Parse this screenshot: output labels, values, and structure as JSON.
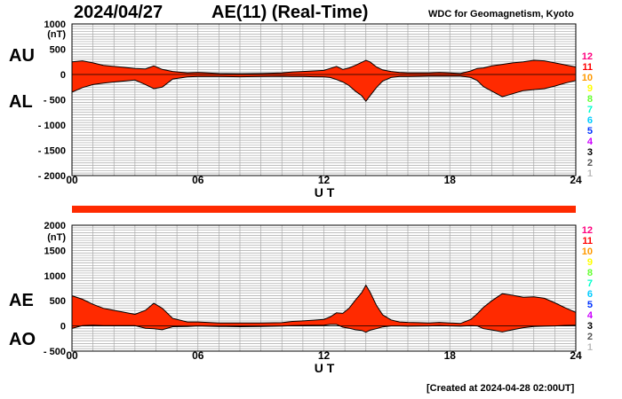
{
  "header": {
    "date": "2024/04/27",
    "index_title": "AE(11) (Real-Time)",
    "source": "WDC for Geomagnetism, Kyoto"
  },
  "footer": {
    "created": "[Created at 2024-04-28 02:00UT]"
  },
  "labels": {
    "au": "AU",
    "al": "AL",
    "ae": "AE",
    "ao": "AO"
  },
  "colors": {
    "fill": "#ff2a00",
    "grid": "#a8a8a8",
    "station_bar": "#ff2a00",
    "legend": [
      "#ff007f",
      "#ff0000",
      "#ff9900",
      "#ffff00",
      "#66ff33",
      "#00ffcc",
      "#00ccff",
      "#0033ff",
      "#cc00ff",
      "#000000",
      "#555555",
      "#bbbbbb"
    ]
  },
  "legend_numbers": [
    "12",
    "11",
    "10",
    "9",
    "8",
    "7",
    "6",
    "5",
    "4",
    "3",
    "2",
    "1"
  ],
  "chart_data": [
    {
      "type": "area",
      "name": "AU/AL",
      "xlabel": "U T",
      "ylabel": "(nT)",
      "xlim": [
        0,
        24
      ],
      "ylim": [
        -2000,
        1000
      ],
      "xticks": [
        "00",
        "06",
        "12",
        "18",
        "24"
      ],
      "yticks": [
        "1000",
        "500",
        "0",
        "- 500",
        "- 1000",
        "- 1500",
        "- 2000"
      ],
      "grid": true,
      "x": [
        0,
        0.5,
        1,
        1.5,
        2,
        2.5,
        3,
        3.5,
        3.9,
        4.3,
        4.8,
        5.5,
        6,
        7,
        8,
        9,
        10,
        10.5,
        11,
        11.5,
        12,
        12.3,
        12.6,
        12.9,
        13.2,
        13.5,
        13.8,
        14,
        14.2,
        14.5,
        14.8,
        15.2,
        15.6,
        16,
        16.5,
        17,
        17.5,
        18,
        18.5,
        19,
        19.3,
        19.6,
        20,
        20.5,
        21,
        21.5,
        22,
        22.5,
        23,
        23.5,
        24
      ],
      "series": [
        {
          "name": "AU",
          "values": [
            250,
            270,
            230,
            180,
            160,
            140,
            120,
            110,
            170,
            100,
            60,
            30,
            40,
            20,
            15,
            20,
            30,
            50,
            60,
            70,
            80,
            120,
            160,
            100,
            130,
            180,
            240,
            280,
            250,
            150,
            90,
            60,
            40,
            30,
            30,
            30,
            40,
            30,
            20,
            70,
            120,
            130,
            170,
            200,
            230,
            250,
            280,
            270,
            230,
            190,
            150
          ]
        },
        {
          "name": "AL",
          "values": [
            -350,
            -260,
            -200,
            -170,
            -150,
            -130,
            -110,
            -200,
            -280,
            -250,
            -90,
            -50,
            -40,
            -40,
            -45,
            -40,
            -35,
            -40,
            -40,
            -45,
            -50,
            -60,
            -100,
            -150,
            -220,
            -330,
            -420,
            -530,
            -420,
            -260,
            -130,
            -60,
            -40,
            -40,
            -35,
            -30,
            -30,
            -30,
            -30,
            -60,
            -120,
            -240,
            -330,
            -440,
            -380,
            -320,
            -300,
            -280,
            -230,
            -170,
            -120
          ]
        }
      ]
    },
    {
      "type": "area",
      "name": "AE/AO",
      "xlabel": "U T",
      "ylabel": "(nT)",
      "xlim": [
        0,
        24
      ],
      "ylim": [
        -500,
        2000
      ],
      "xticks": [
        "00",
        "06",
        "12",
        "18",
        "24"
      ],
      "yticks": [
        "2000",
        "1500",
        "1000",
        "500",
        "0",
        "- 500"
      ],
      "grid": true,
      "x": [
        0,
        0.5,
        1,
        1.5,
        2,
        2.5,
        3,
        3.5,
        3.9,
        4.3,
        4.8,
        5.5,
        6,
        7,
        8,
        9,
        10,
        10.5,
        11,
        11.5,
        12,
        12.3,
        12.6,
        12.9,
        13.2,
        13.5,
        13.8,
        14,
        14.2,
        14.5,
        14.8,
        15.2,
        15.6,
        16,
        16.5,
        17,
        17.5,
        18,
        18.5,
        19,
        19.3,
        19.6,
        20,
        20.5,
        21,
        21.5,
        22,
        22.5,
        23,
        23.5,
        24
      ],
      "series": [
        {
          "name": "AE",
          "values": [
            600,
            530,
            430,
            350,
            310,
            270,
            230,
            310,
            450,
            350,
            150,
            80,
            80,
            60,
            60,
            60,
            65,
            90,
            100,
            115,
            130,
            180,
            260,
            250,
            350,
            510,
            660,
            810,
            670,
            410,
            220,
            120,
            80,
            70,
            65,
            60,
            70,
            60,
            50,
            130,
            240,
            370,
            500,
            640,
            610,
            570,
            580,
            550,
            460,
            360,
            270
          ]
        },
        {
          "name": "AO",
          "values": [
            -50,
            5,
            15,
            5,
            5,
            5,
            5,
            -45,
            -55,
            -75,
            -15,
            -10,
            0,
            -10,
            -15,
            -10,
            -3,
            5,
            10,
            13,
            15,
            30,
            30,
            -25,
            -45,
            -75,
            -90,
            -125,
            -85,
            -55,
            -20,
            0,
            0,
            -5,
            -3,
            0,
            5,
            0,
            -5,
            5,
            0,
            -55,
            -80,
            -120,
            -75,
            -35,
            -10,
            -5,
            0,
            10,
            15
          ]
        }
      ]
    }
  ]
}
